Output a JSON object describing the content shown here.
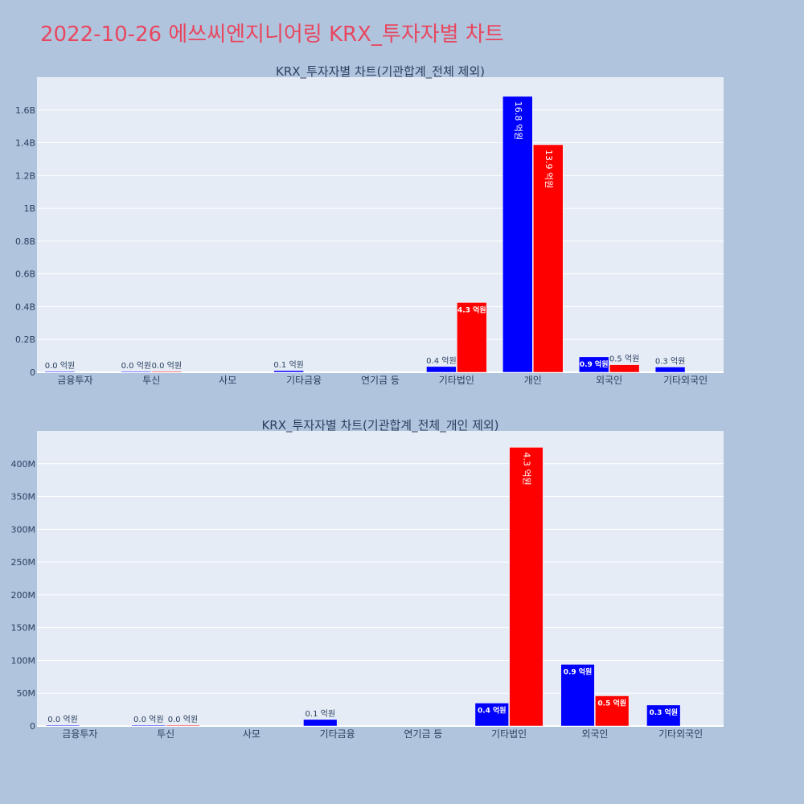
{
  "page": {
    "title": "2022-10-26 에쓰씨엔지니어링 KRX_투자자별 차트"
  },
  "colors": {
    "background": "#b0c4de",
    "plot_bg": "#e5ecf6",
    "buy": "#0000ff",
    "sell": "#ff0000",
    "title": "#e8475f",
    "axis_text": "#2a3f5f"
  },
  "chart_data": [
    {
      "type": "bar",
      "title": "KRX_투자자별 차트(기관합계_전체 제외)",
      "categories": [
        "금융투자",
        "투신",
        "사모",
        "기타금융",
        "연기금 등",
        "기타법인",
        "개인",
        "외국인",
        "기타외국인"
      ],
      "ylim": [
        0,
        1800000000
      ],
      "yticks": [
        {
          "value": 0,
          "label": "0"
        },
        {
          "value": 200000000,
          "label": "0.2B"
        },
        {
          "value": 400000000,
          "label": "0.4B"
        },
        {
          "value": 600000000,
          "label": "0.6B"
        },
        {
          "value": 800000000,
          "label": "0.8B"
        },
        {
          "value": 1000000000,
          "label": "1B"
        },
        {
          "value": 1200000000,
          "label": "1.2B"
        },
        {
          "value": 1400000000,
          "label": "1.4B"
        },
        {
          "value": 1600000000,
          "label": "1.6B"
        }
      ],
      "grid": true,
      "series": [
        {
          "color": "#0000ff",
          "values": [
            1000000,
            500000,
            0,
            10000000,
            0,
            35000000,
            1683000000,
            94000000,
            32000000
          ],
          "labels": [
            "0.0 억원",
            "0.0 억원",
            "",
            "0.1 억원",
            "",
            "0.4 억원",
            "16.8 억원",
            "0.9 억원",
            "0.3 억원"
          ]
        },
        {
          "color": "#ff0000",
          "values": [
            0,
            500000,
            0,
            0,
            0,
            425000000,
            1388000000,
            46000000,
            0
          ],
          "labels": [
            "",
            "0.0 억원",
            "",
            "",
            "",
            "4.3 억원",
            "13.9 억원",
            "0.5 억원",
            ""
          ]
        }
      ]
    },
    {
      "type": "bar",
      "title": "KRX_투자자별 차트(기관합계_전체_개인 제외)",
      "categories": [
        "금융투자",
        "투신",
        "사모",
        "기타금융",
        "연기금 등",
        "기타법인",
        "외국인",
        "기타외국인"
      ],
      "ylim": [
        0,
        450000000
      ],
      "yticks": [
        {
          "value": 0,
          "label": "0"
        },
        {
          "value": 50000000,
          "label": "50M"
        },
        {
          "value": 100000000,
          "label": "100M"
        },
        {
          "value": 150000000,
          "label": "150M"
        },
        {
          "value": 200000000,
          "label": "200M"
        },
        {
          "value": 250000000,
          "label": "250M"
        },
        {
          "value": 300000000,
          "label": "300M"
        },
        {
          "value": 350000000,
          "label": "350M"
        },
        {
          "value": 400000000,
          "label": "400M"
        }
      ],
      "grid": true,
      "series": [
        {
          "color": "#0000ff",
          "values": [
            1000000,
            500000,
            0,
            10000000,
            0,
            35000000,
            94000000,
            32000000
          ],
          "labels": [
            "0.0 억원",
            "0.0 억원",
            "",
            "0.1 억원",
            "",
            "0.4 억원",
            "0.9 억원",
            "0.3 억원"
          ]
        },
        {
          "color": "#ff0000",
          "values": [
            0,
            500000,
            0,
            0,
            0,
            425000000,
            46000000,
            0
          ],
          "labels": [
            "",
            "0.0 억원",
            "",
            "",
            "",
            "4.3 억원",
            "0.5 억원",
            ""
          ]
        }
      ]
    }
  ]
}
